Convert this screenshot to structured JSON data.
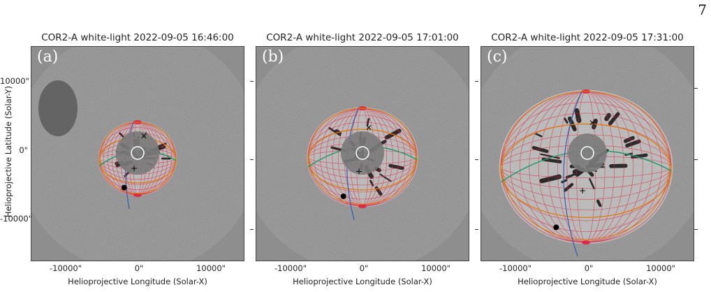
{
  "page_number": "7",
  "ylabel": "Helioprojective Latitude (Solar-Y)",
  "xlabel": "Helioprojective Longitude (Solar-X)",
  "xtick_labels": [
    "-10000\"",
    "0\"",
    "10000\""
  ],
  "ytick_labels": [
    "10000\"",
    "0\"",
    "-10000\""
  ],
  "colors": {
    "background_gray": "#8e8e8e",
    "mesh": "#e0203a",
    "ellipse_orange": "#e07a10",
    "ellipse_green": "#1a9a6a",
    "ellipse_blue": "#3a5ab0",
    "occulter": "#ffffff"
  },
  "panels": [
    {
      "label": "(a)",
      "title": "COR2-A white-light 2022-09-05 16:46:00"
    },
    {
      "label": "(b)",
      "title": "COR2-A white-light 2022-09-05 17:01:00"
    },
    {
      "label": "(c)",
      "title": "COR2-A white-light 2022-09-05 17:31:00"
    }
  ]
}
